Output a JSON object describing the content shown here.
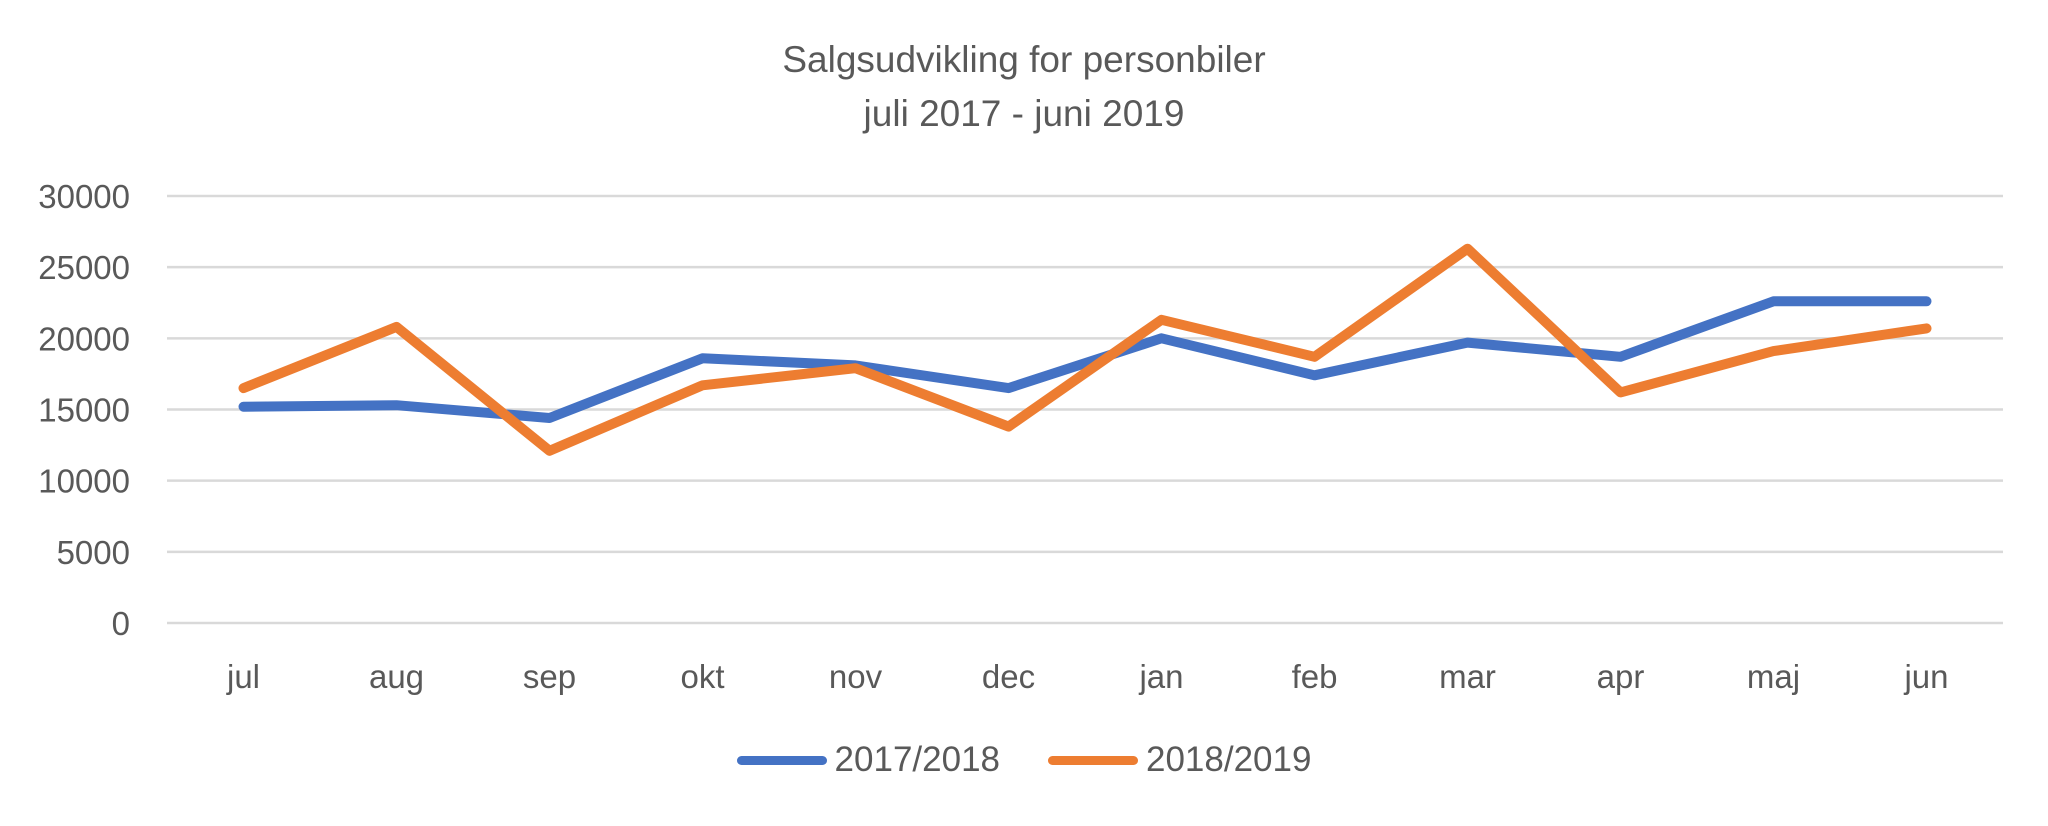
{
  "chart_data": {
    "type": "line",
    "title": [
      "Salgsudvikling for personbiler",
      "juli 2017 - juni 2019"
    ],
    "categories": [
      "jul",
      "aug",
      "sep",
      "okt",
      "nov",
      "dec",
      "jan",
      "feb",
      "mar",
      "apr",
      "maj",
      "jun"
    ],
    "series": [
      {
        "name": "2017/2018",
        "color": "#4472C4",
        "values": [
          15200,
          15300,
          14400,
          18600,
          18100,
          16500,
          20000,
          17400,
          19700,
          18700,
          22600,
          22600
        ]
      },
      {
        "name": "2018/2019",
        "color": "#ED7D31",
        "values": [
          16500,
          20800,
          12100,
          16700,
          17900,
          13800,
          21300,
          18700,
          26300,
          16200,
          19100,
          20700
        ]
      }
    ],
    "ylim": [
      0,
      30000
    ],
    "yticks": [
      0,
      5000,
      10000,
      15000,
      20000,
      25000,
      30000
    ],
    "xlabel": "",
    "ylabel": "",
    "grid": true,
    "legend": "bottom",
    "gridline_color": "#D9D9D9"
  }
}
